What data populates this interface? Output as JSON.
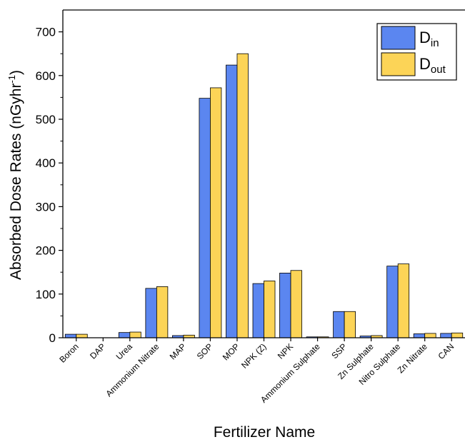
{
  "chart_data": {
    "type": "bar",
    "xlabel": "Fertilizer Name",
    "ylabel": "Absorbed Dose Rates (nGyhr",
    "ylabel_sup": "-1",
    "ylabel_end": ")",
    "ylim": [
      0,
      750
    ],
    "yticks": [
      0,
      100,
      200,
      300,
      400,
      500,
      600,
      700
    ],
    "grid": false,
    "legend_placement": "top-right",
    "categories": [
      "Boron",
      "DAP",
      "Urea",
      "Ammonium Nitrate",
      "MAP",
      "SOP",
      "MOP",
      "NPK (Z)",
      "NPK",
      "Ammonium Sulphate",
      "SSP",
      "Zn Sulphate",
      "Nitro Sulphate",
      "Zn Nitrate",
      "CAN"
    ],
    "series": [
      {
        "name": "D",
        "name_sub": "in",
        "color": "#5b86f0",
        "values": [
          8,
          0,
          12,
          113,
          5,
          548,
          624,
          124,
          148,
          2,
          60,
          4,
          164,
          9,
          10
        ]
      },
      {
        "name": "D",
        "name_sub": "out",
        "color": "#fcd457",
        "values": [
          8,
          0,
          13,
          117,
          6,
          572,
          650,
          130,
          154,
          2,
          60,
          5,
          169,
          10,
          11
        ]
      }
    ]
  }
}
